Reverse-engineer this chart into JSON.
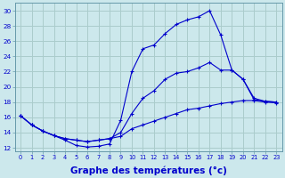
{
  "background_color": "#cce8ec",
  "grid_color": "#aacccc",
  "line_color": "#0000cc",
  "xlabel": "Graphe des températures (°c)",
  "xlabel_fontsize": 7.5,
  "xlim": [
    -0.5,
    23.5
  ],
  "ylim": [
    11.5,
    31
  ],
  "yticks": [
    12,
    14,
    16,
    18,
    20,
    22,
    24,
    26,
    28,
    30
  ],
  "xticks": [
    0,
    1,
    2,
    3,
    4,
    5,
    6,
    7,
    8,
    9,
    10,
    11,
    12,
    13,
    14,
    15,
    16,
    17,
    18,
    19,
    20,
    21,
    22,
    23
  ],
  "series_max": [
    16.2,
    15.0,
    14.2,
    13.6,
    13.0,
    12.3,
    12.1,
    12.2,
    12.5,
    15.6,
    22.0,
    25.0,
    25.5,
    27.0,
    28.2,
    28.8,
    29.2,
    30.0,
    26.8,
    22.2,
    21.0,
    18.3,
    18.1,
    18.0
  ],
  "series_min": [
    16.2,
    15.0,
    14.2,
    13.6,
    13.2,
    13.0,
    12.8,
    13.0,
    13.2,
    13.5,
    14.5,
    15.0,
    15.5,
    16.0,
    16.5,
    17.0,
    17.2,
    17.5,
    17.8,
    18.0,
    18.2,
    18.2,
    18.0,
    17.9
  ],
  "series_avg": [
    16.2,
    15.0,
    14.2,
    13.6,
    13.2,
    13.0,
    12.8,
    13.0,
    13.2,
    14.0,
    16.5,
    18.5,
    19.5,
    21.0,
    21.8,
    22.0,
    22.5,
    23.2,
    22.2,
    22.2,
    21.0,
    18.5,
    18.1,
    18.0
  ]
}
